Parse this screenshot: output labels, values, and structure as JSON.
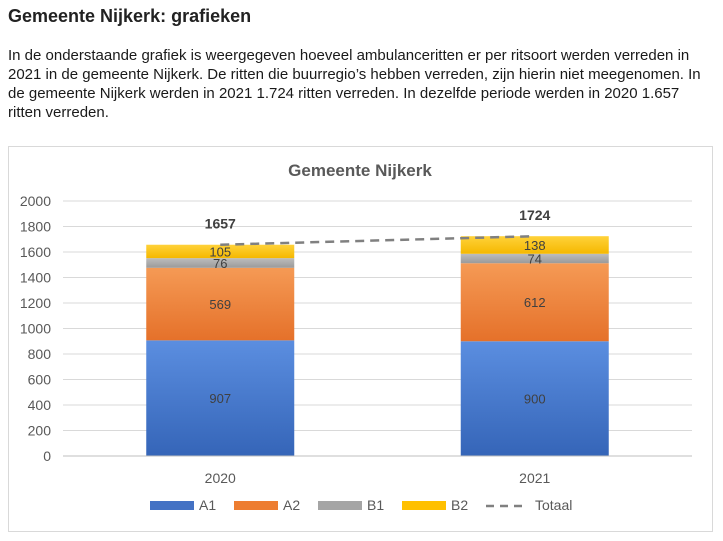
{
  "page": {
    "title": "Gemeente Nijkerk: grafieken",
    "intro": "In de onderstaande grafiek is weergegeven hoeveel ambulanceritten er per ritsoort werden verreden in 2021 in de gemeente Nijkerk. De ritten die buurregio’s hebben verreden, zijn hierin niet meegenomen. In de gemeente Nijkerk werden in 2021 1.724 ritten verreden. In dezelfde periode werden in 2020 1.657 ritten verreden."
  },
  "chart_data": {
    "type": "bar",
    "stacked": true,
    "title": "Gemeente Nijkerk",
    "xlabel": "",
    "ylabel": "",
    "categories": [
      "2020",
      "2021"
    ],
    "ylim": [
      0,
      2000
    ],
    "yticks": [
      0,
      200,
      400,
      600,
      800,
      1000,
      1200,
      1400,
      1600,
      1800,
      2000
    ],
    "grid": true,
    "legend_position": "bottom",
    "series": [
      {
        "name": "A1",
        "values": [
          907,
          900
        ],
        "color": "#4472c4"
      },
      {
        "name": "A2",
        "values": [
          569,
          612
        ],
        "color": "#ed7d31"
      },
      {
        "name": "B1",
        "values": [
          76,
          74
        ],
        "color": "#a5a5a5"
      },
      {
        "name": "B2",
        "values": [
          105,
          138
        ],
        "color": "#ffc000"
      }
    ],
    "total": {
      "name": "Totaal",
      "values": [
        1657,
        1724
      ],
      "style": "dashed",
      "color": "#808080"
    }
  }
}
